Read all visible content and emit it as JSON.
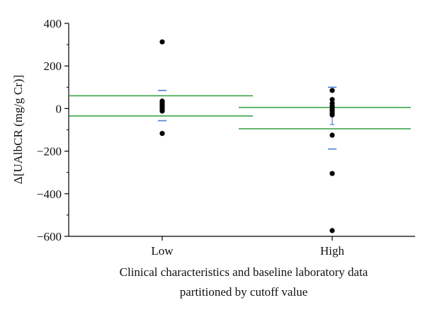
{
  "chart_data": {
    "type": "scatter",
    "categories": [
      "Low",
      "High"
    ],
    "ylabel": "Δ[UAlbCR (mg/g Cr)]",
    "xlabel_lines": [
      "Clinical characteristics and baseline laboratory data",
      "partitioned by cutoff value"
    ],
    "ylim": [
      -600,
      400
    ],
    "yticks": [
      400,
      200,
      0,
      -200,
      -400,
      -600
    ],
    "ytick_labels": [
      "400",
      "200",
      "0",
      "−200",
      "−400",
      "−600"
    ],
    "minor_ytick_step": 100,
    "series": [
      {
        "category": "Low",
        "values": [
          313,
          35,
          28,
          20,
          14,
          8,
          2,
          -5,
          -12,
          -117
        ]
      },
      {
        "category": "High",
        "values": [
          85,
          42,
          25,
          12,
          5,
          -5,
          -12,
          -22,
          -30,
          -125,
          -305,
          -573
        ]
      }
    ],
    "reference_lines": [
      {
        "category": "Low",
        "values": [
          60,
          -35
        ]
      },
      {
        "category": "High",
        "values": [
          5,
          -95
        ]
      }
    ],
    "error_bars": [
      {
        "category": "Low",
        "upper": 85,
        "lower": -57
      },
      {
        "category": "High",
        "upper": 100,
        "lower": -190,
        "inner_upper": -15,
        "inner_lower": -75
      }
    ],
    "colors": {
      "points": "#000000",
      "reference_lines": "#2e9e3a",
      "error_bars": "#4a7fd6",
      "axis": "#000000"
    }
  }
}
